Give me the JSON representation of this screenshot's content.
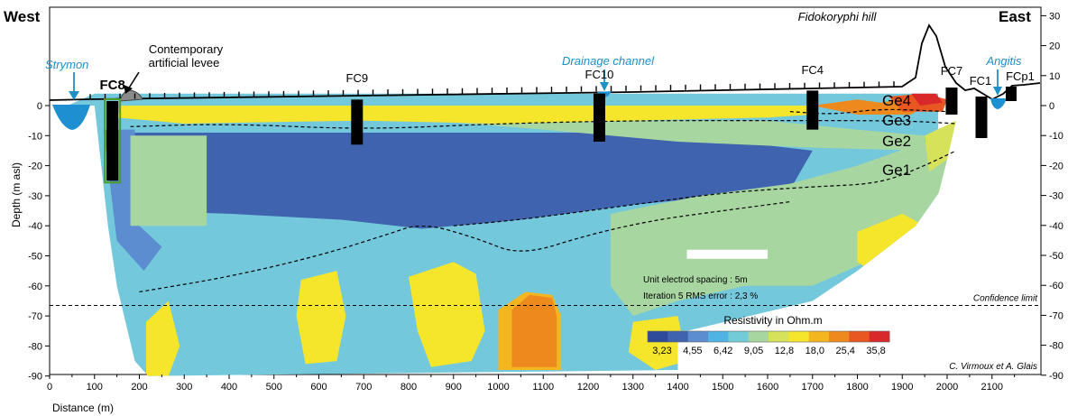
{
  "chart_data": {
    "type": "heatmap",
    "title": "",
    "xlabel": "Distance (m)",
    "ylabel": "Depth (m asl)",
    "xlim": [
      0,
      2200
    ],
    "ylim": [
      -90,
      0
    ],
    "right_ylim": [
      -90,
      30
    ],
    "x_ticks": [
      "0",
      "100",
      "200",
      "300",
      "400",
      "500",
      "600",
      "700",
      "800",
      "900",
      "1000",
      "1100",
      "1200",
      "1300",
      "1400",
      "1500",
      "1600",
      "1700",
      "1800",
      "1900",
      "2000",
      "2100"
    ],
    "y_ticks_left": [
      "0",
      "-10",
      "-20",
      "-30",
      "-40",
      "-50",
      "-60",
      "-70",
      "-80",
      "-90"
    ],
    "y_ticks_right": [
      "30",
      "20",
      "10",
      "0",
      "-10",
      "-20",
      "-30",
      "-40",
      "-50",
      "-60",
      "-70",
      "-80",
      "-90"
    ],
    "west_label": "West",
    "east_label": "East",
    "hill_label": "Fidokoryphi hill",
    "river_west": "Strymon",
    "river_east": "Angitis",
    "drainage_label": "Drainage channel",
    "levee_label": [
      "Contemporary",
      "artificial levee"
    ],
    "boreholes": [
      {
        "name": "FC8",
        "x": 140,
        "bottom": -25
      },
      {
        "name": "FC9",
        "x": 685,
        "bottom": -13
      },
      {
        "name": "FC10",
        "x": 1225,
        "bottom": -12
      },
      {
        "name": "FC4",
        "x": 1700,
        "bottom": -8
      },
      {
        "name": "FC7",
        "x": 2010,
        "bottom": -3
      },
      {
        "name": "FC1",
        "x": 2080,
        "bottom": -11
      },
      {
        "name": "FCp1",
        "x": 2140,
        "bottom": 0
      }
    ],
    "units": [
      {
        "name": "Ge4",
        "depth": 2
      },
      {
        "name": "Ge3",
        "depth": -6
      },
      {
        "name": "Ge2",
        "depth": -14
      },
      {
        "name": "Ge1",
        "depth": -27
      }
    ],
    "info": [
      "Unit electrod spacing : 5m",
      "Iteration 5 RMS error : 2,3 %"
    ],
    "confidence_limit": {
      "label": "Confidence limit",
      "depth": -66.5
    },
    "colorbar": {
      "title": "Resistivity in Ohm.m",
      "labels": [
        "3,23",
        "4,55",
        "6,42",
        "9,05",
        "12,8",
        "18,0",
        "25,4",
        "35,8"
      ],
      "colors": [
        "#2e4a9a",
        "#3f63ae",
        "#5b8dd0",
        "#4fb4e4",
        "#74cbd8",
        "#a8d6a0",
        "#d6e35a",
        "#f5e62c",
        "#f3b61f",
        "#ee8a1d",
        "#e85622",
        "#d8282a"
      ]
    },
    "credit": "C. Virmoux et A. Glais",
    "background_color": "#74c8dc",
    "dashed_boundaries": [
      {
        "name": "Ge4/Ge3",
        "points": [
          [
            1650,
            -2
          ],
          [
            1750,
            -3
          ],
          [
            1850,
            -1
          ],
          [
            2000,
            -2
          ]
        ]
      },
      {
        "name": "Ge3/Ge2",
        "points": [
          [
            180,
            -7
          ],
          [
            400,
            -6
          ],
          [
            700,
            -8
          ],
          [
            1000,
            -6
          ],
          [
            1300,
            -5
          ],
          [
            1600,
            -5
          ],
          [
            1900,
            -5
          ],
          [
            2020,
            -6
          ]
        ]
      },
      {
        "name": "Ge2/Ge1",
        "points": [
          [
            900,
            -40
          ],
          [
            1050,
            -38
          ],
          [
            1300,
            -33
          ],
          [
            1500,
            -29
          ],
          [
            1700,
            -27
          ],
          [
            1850,
            -26
          ],
          [
            1950,
            -20
          ],
          [
            2020,
            -15
          ]
        ]
      },
      {
        "name": "base",
        "points": [
          [
            200,
            -62
          ],
          [
            400,
            -57
          ],
          [
            600,
            -50
          ],
          [
            750,
            -43
          ],
          [
            830,
            -39
          ],
          [
            950,
            -44
          ],
          [
            1050,
            -50
          ],
          [
            1200,
            -43
          ],
          [
            1350,
            -38
          ],
          [
            1500,
            -35
          ],
          [
            1650,
            -32
          ]
        ]
      }
    ],
    "zones": [
      {
        "color": "#2e4a9a",
        "points": [
          [
            190,
            -10
          ],
          [
            600,
            -9
          ],
          [
            1100,
            -11
          ],
          [
            1400,
            -17
          ],
          [
            1400,
            -25
          ],
          [
            1100,
            -26
          ],
          [
            850,
            -30
          ],
          [
            600,
            -35
          ],
          [
            200,
            -30
          ]
        ]
      },
      {
        "color": "#3f63ae",
        "points": [
          [
            150,
            -9
          ],
          [
            1350,
            -9
          ],
          [
            1700,
            -15
          ],
          [
            1650,
            -28
          ],
          [
            1300,
            -33
          ],
          [
            1050,
            -38
          ],
          [
            830,
            -41
          ],
          [
            650,
            -38
          ],
          [
            400,
            -36
          ],
          [
            200,
            -35
          ],
          [
            140,
            -30
          ]
        ]
      },
      {
        "color": "#5b8dd0",
        "points": [
          [
            120,
            -8
          ],
          [
            190,
            -8
          ],
          [
            200,
            -40
          ],
          [
            250,
            -47
          ],
          [
            210,
            -55
          ],
          [
            150,
            -45
          ]
        ]
      },
      {
        "color": "#a8d6a0",
        "points": [
          [
            180,
            -10
          ],
          [
            350,
            -10
          ],
          [
            350,
            -40
          ],
          [
            180,
            -40
          ]
        ]
      },
      {
        "color": "#a8d6a0",
        "points": [
          [
            1250,
            -36
          ],
          [
            1450,
            -30
          ],
          [
            1650,
            -26
          ],
          [
            1800,
            -20
          ],
          [
            1950,
            -12
          ],
          [
            2000,
            -18
          ],
          [
            1980,
            -30
          ],
          [
            1950,
            -38
          ],
          [
            1850,
            -50
          ],
          [
            1700,
            -60
          ],
          [
            1550,
            -60
          ],
          [
            1400,
            -65
          ],
          [
            1300,
            -70
          ],
          [
            1250,
            -60
          ]
        ]
      },
      {
        "color": "#a8d6a0",
        "points": [
          [
            850,
            -5
          ],
          [
            1600,
            -5
          ],
          [
            1800,
            -8
          ],
          [
            1950,
            -10
          ],
          [
            1950,
            -15
          ],
          [
            1700,
            -14
          ],
          [
            1400,
            -12
          ],
          [
            1100,
            -8
          ]
        ]
      },
      {
        "color": "#f5e62c",
        "points": [
          [
            150,
            -4
          ],
          [
            300,
            -6
          ],
          [
            700,
            -5
          ],
          [
            1000,
            -6
          ],
          [
            1600,
            -4
          ],
          [
            1700,
            -3
          ],
          [
            1700,
            0
          ],
          [
            160,
            0
          ]
        ]
      },
      {
        "color": "#f5e62c",
        "points": [
          [
            800,
            -57
          ],
          [
            900,
            -52
          ],
          [
            950,
            -56
          ],
          [
            970,
            -75
          ],
          [
            940,
            -85
          ],
          [
            850,
            -87
          ],
          [
            820,
            -75
          ]
        ]
      },
      {
        "color": "#f5e62c",
        "points": [
          [
            560,
            -58
          ],
          [
            640,
            -55
          ],
          [
            660,
            -70
          ],
          [
            640,
            -85
          ],
          [
            570,
            -86
          ],
          [
            550,
            -70
          ]
        ]
      },
      {
        "color": "#f5e62c",
        "points": [
          [
            1800,
            -42
          ],
          [
            1900,
            -36
          ],
          [
            1950,
            -40
          ],
          [
            1930,
            -55
          ],
          [
            1850,
            -57
          ],
          [
            1800,
            -52
          ]
        ]
      },
      {
        "color": "#f5e62c",
        "points": [
          [
            1300,
            -72
          ],
          [
            1400,
            -70
          ],
          [
            1420,
            -85
          ],
          [
            1350,
            -88
          ],
          [
            1290,
            -82
          ]
        ]
      },
      {
        "color": "#f5e62c",
        "points": [
          [
            215,
            -72
          ],
          [
            265,
            -65
          ],
          [
            290,
            -80
          ],
          [
            265,
            -90
          ],
          [
            215,
            -90
          ]
        ]
      },
      {
        "color": "#d6e35a",
        "points": [
          [
            1950,
            -10
          ],
          [
            2020,
            -5
          ],
          [
            2000,
            -18
          ],
          [
            1960,
            -22
          ]
        ]
      },
      {
        "color": "#f3b61f",
        "points": [
          [
            1000,
            -68
          ],
          [
            1060,
            -62
          ],
          [
            1120,
            -63
          ],
          [
            1140,
            -70
          ],
          [
            1140,
            -88
          ],
          [
            1000,
            -88
          ]
        ]
      },
      {
        "color": "#ee8a1d",
        "points": [
          [
            1030,
            -68
          ],
          [
            1070,
            -63
          ],
          [
            1120,
            -64
          ],
          [
            1130,
            -70
          ],
          [
            1130,
            -87
          ],
          [
            1030,
            -87
          ]
        ]
      },
      {
        "color": "#ee8a1d",
        "points": [
          [
            1700,
            0
          ],
          [
            1800,
            2
          ],
          [
            1850,
            1
          ],
          [
            1900,
            2
          ],
          [
            1950,
            0
          ],
          [
            1920,
            -3
          ],
          [
            1800,
            -3
          ]
        ]
      },
      {
        "color": "#e85622",
        "points": [
          [
            1870,
            3
          ],
          [
            1950,
            4
          ],
          [
            2000,
            2
          ],
          [
            1990,
            -2
          ],
          [
            1900,
            -2
          ]
        ]
      },
      {
        "color": "#d8282a",
        "points": [
          [
            1920,
            4
          ],
          [
            1970,
            5
          ],
          [
            1990,
            1
          ],
          [
            1940,
            0
          ]
        ]
      }
    ],
    "section_outline": [
      [
        40,
        0
      ],
      [
        100,
        0
      ],
      [
        130,
        -40
      ],
      [
        150,
        -60
      ],
      [
        190,
        -85
      ],
      [
        220,
        -90
      ],
      [
        1400,
        -88
      ],
      [
        1400,
        -75
      ],
      [
        1420,
        -75
      ],
      [
        1700,
        -65
      ],
      [
        1800,
        -55
      ],
      [
        1930,
        -40
      ],
      [
        2000,
        -25
      ],
      [
        2030,
        -5
      ],
      [
        2050,
        1
      ],
      [
        2060,
        4
      ],
      [
        100,
        4
      ]
    ],
    "white_notches": [
      {
        "points": [
          [
            1420,
            -48
          ],
          [
            1600,
            -48
          ],
          [
            1600,
            -51
          ],
          [
            1420,
            -51
          ]
        ]
      }
    ]
  }
}
